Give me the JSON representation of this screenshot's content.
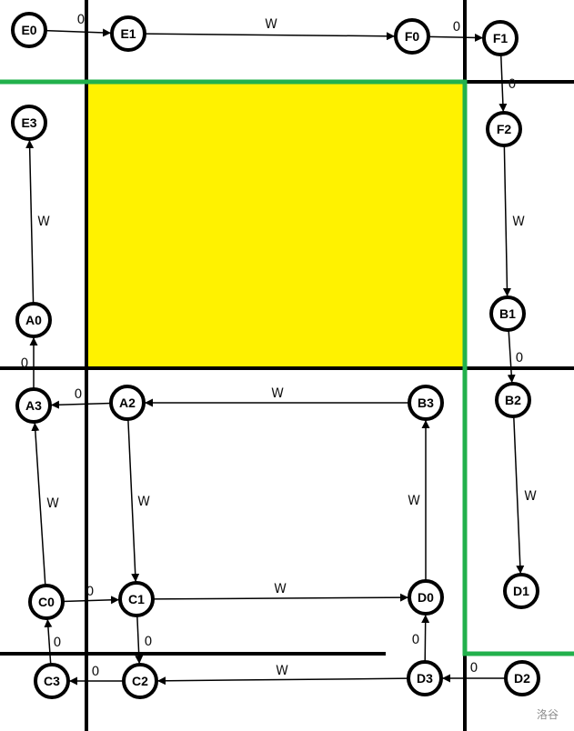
{
  "colors": {
    "highlight": "#fff200",
    "path": "#22b14c",
    "grid": "#000000",
    "node_fill": "#ffffff",
    "node_stroke": "#000000"
  },
  "watermark": "洛谷",
  "nodes": [
    {
      "id": "E0",
      "label": "E0"
    },
    {
      "id": "E1",
      "label": "E1"
    },
    {
      "id": "F0",
      "label": "F0"
    },
    {
      "id": "F1",
      "label": "F1"
    },
    {
      "id": "F2",
      "label": "F2"
    },
    {
      "id": "E3",
      "label": "E3"
    },
    {
      "id": "A0",
      "label": "A0"
    },
    {
      "id": "A3",
      "label": "A3"
    },
    {
      "id": "A2",
      "label": "A2"
    },
    {
      "id": "B3",
      "label": "B3"
    },
    {
      "id": "B1",
      "label": "B1"
    },
    {
      "id": "B2",
      "label": "B2"
    },
    {
      "id": "C0",
      "label": "C0"
    },
    {
      "id": "C1",
      "label": "C1"
    },
    {
      "id": "D0",
      "label": "D0"
    },
    {
      "id": "D1",
      "label": "D1"
    },
    {
      "id": "C3",
      "label": "C3"
    },
    {
      "id": "C2",
      "label": "C2"
    },
    {
      "id": "D3",
      "label": "D3"
    },
    {
      "id": "D2",
      "label": "D2"
    }
  ],
  "edges": [
    {
      "from": "E0",
      "to": "E1",
      "label": "0"
    },
    {
      "from": "E1",
      "to": "F0",
      "label": "W"
    },
    {
      "from": "F0",
      "to": "F1",
      "label": "0"
    },
    {
      "from": "F1",
      "to": "F2",
      "label": "0"
    },
    {
      "from": "F2",
      "to": "B1",
      "label": "W"
    },
    {
      "from": "B1",
      "to": "B2",
      "label": "0"
    },
    {
      "from": "B2",
      "to": "D1",
      "label": "W"
    },
    {
      "from": "A0",
      "to": "E3",
      "label": "W"
    },
    {
      "from": "A3",
      "to": "A0",
      "label": "0"
    },
    {
      "from": "A2",
      "to": "A3",
      "label": "0"
    },
    {
      "from": "B3",
      "to": "A2",
      "label": "W"
    },
    {
      "from": "C0",
      "to": "A3",
      "label": "W"
    },
    {
      "from": "A2",
      "to": "C1",
      "label": "W"
    },
    {
      "from": "C0",
      "to": "C1",
      "label": "0"
    },
    {
      "from": "C1",
      "to": "D0",
      "label": "W"
    },
    {
      "from": "D0",
      "to": "B3",
      "label": "W"
    },
    {
      "from": "C3",
      "to": "C0",
      "label": "0"
    },
    {
      "from": "C1",
      "to": "C2",
      "label": "0"
    },
    {
      "from": "C2",
      "to": "C3",
      "label": "0"
    },
    {
      "from": "D3",
      "to": "C2",
      "label": "W"
    },
    {
      "from": "D3",
      "to": "D0",
      "label": "0"
    },
    {
      "from": "D2",
      "to": "D3",
      "label": "0"
    }
  ]
}
